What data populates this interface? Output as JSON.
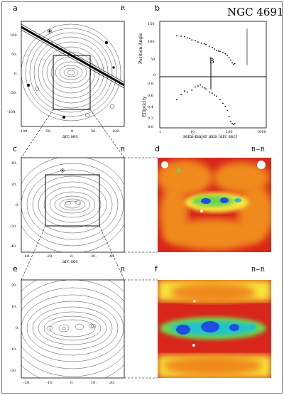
{
  "figure": {
    "title": "NGC 4691",
    "panels": {
      "a": {
        "letter": "a",
        "band": "R",
        "xlabel": "arc sec",
        "xticks": [
          "-100.",
          "-50.",
          "0.",
          "50.",
          "100."
        ],
        "yticks": [
          "100.",
          "50.",
          "0.",
          "-50.",
          "-100."
        ]
      },
      "b": {
        "letter": "b"
      },
      "c": {
        "letter": "c",
        "band": "R",
        "xlabel": "arc sec",
        "xticks": [
          "-40.",
          "-20.",
          "0.",
          "20.",
          "40."
        ],
        "yticks": [
          "40.",
          "20.",
          "0.",
          "-20.",
          "-40."
        ]
      },
      "d": {
        "letter": "d",
        "band": "B−R"
      },
      "e": {
        "letter": "e",
        "band": "R",
        "xlabel": "arc sec",
        "xticks": [
          "-20.",
          "-10.",
          "0.",
          "10.",
          "20."
        ],
        "yticks": [
          "20.",
          "10.",
          "0.",
          "-10.",
          "-20."
        ]
      },
      "f": {
        "letter": "f",
        "band": "B−R"
      }
    }
  },
  "chart_data": [
    {
      "type": "scatter",
      "panel": "b-top",
      "xlabel": "",
      "ylabel": "Position Angle",
      "xscale": "log",
      "xlim": [
        1,
        1000
      ],
      "ylim": [
        0,
        160
      ],
      "yticks": [
        "150",
        "100",
        "50",
        "0"
      ],
      "annotation": "B",
      "x": [
        3,
        4,
        5,
        6,
        7,
        8,
        10,
        12,
        15,
        18,
        20,
        25,
        30,
        35,
        40,
        45,
        50,
        60,
        70,
        80,
        90,
        100,
        110,
        120,
        130
      ],
      "y": [
        118,
        117,
        116,
        112,
        110,
        106,
        104,
        100,
        97,
        95,
        93,
        88,
        85,
        80,
        76,
        74,
        73,
        70,
        66,
        62,
        56,
        48,
        40,
        36,
        38
      ]
    },
    {
      "type": "scatter",
      "panel": "b-bottom",
      "xlabel": "semi-major axis (arc sec)",
      "ylabel": "Ellipticity",
      "xscale": "log",
      "xlim": [
        1,
        1000
      ],
      "ylim": [
        0,
        1
      ],
      "xticks": [
        "1",
        "10",
        "100",
        "1000"
      ],
      "yticks": [
        "0.8",
        "0.6",
        "0.4",
        "0.2",
        "0.0"
      ],
      "x": [
        3,
        4,
        5,
        6,
        8,
        10,
        12,
        14,
        16,
        18,
        20,
        25,
        30,
        35,
        40,
        50,
        60,
        70,
        80,
        90,
        100,
        110,
        120,
        130
      ],
      "y": [
        0.55,
        0.65,
        0.72,
        0.7,
        0.74,
        0.8,
        0.82,
        0.84,
        0.8,
        0.78,
        0.76,
        0.7,
        0.68,
        0.64,
        0.62,
        0.55,
        0.48,
        0.42,
        0.34,
        0.22,
        0.12,
        0.08,
        0.07,
        0.08
      ]
    }
  ],
  "colors": {
    "red": "#d8261b",
    "orange": "#f08a1c",
    "yellow": "#f7e63a",
    "green": "#6fd24b",
    "cyan": "#22c3c7",
    "blue": "#1f4fe0"
  }
}
